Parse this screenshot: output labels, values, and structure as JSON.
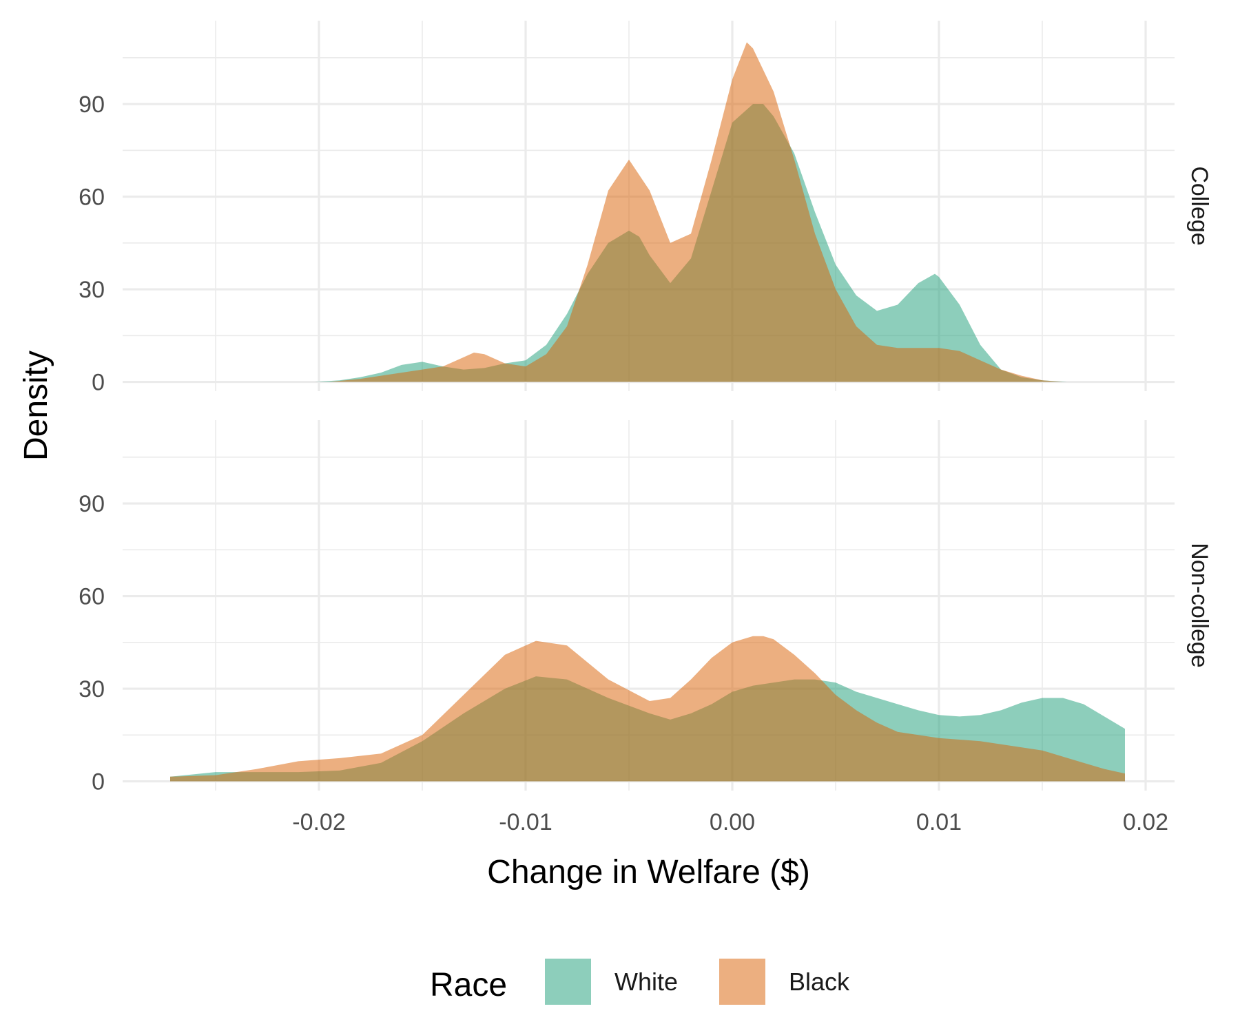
{
  "chart_data": {
    "type": "area",
    "subtype": "density, faceted",
    "xlabel": "Change in Welfare ($)",
    "ylabel": "Density",
    "xlim": [
      -0.0295,
      0.0214
    ],
    "ylim": [
      -3,
      117
    ],
    "x_ticks": [
      -0.02,
      -0.01,
      0.0,
      0.01,
      0.02
    ],
    "x_tick_labels": [
      "-0.02",
      "-0.01",
      "0.00",
      "0.01",
      "0.02"
    ],
    "y_ticks": [
      0,
      30,
      60,
      90
    ],
    "y_tick_labels": [
      "0",
      "30",
      "60",
      "90"
    ],
    "grid": true,
    "legend": {
      "title": "Race",
      "position": "bottom",
      "entries": [
        {
          "label": "White",
          "color": "#1b9e77"
        },
        {
          "label": "Black",
          "color": "#d95f02"
        }
      ]
    },
    "fill_opacity": 0.5,
    "facets": [
      {
        "label": "College",
        "series": [
          {
            "name": "White",
            "color": "#1b9e77",
            "x": [
              -0.0202,
              -0.019,
              -0.018,
              -0.017,
              -0.016,
              -0.015,
              -0.014,
              -0.013,
              -0.012,
              -0.011,
              -0.01,
              -0.009,
              -0.008,
              -0.007,
              -0.006,
              -0.005,
              -0.0045,
              -0.004,
              -0.003,
              -0.002,
              -0.001,
              0.0,
              0.001,
              0.0015,
              0.002,
              0.003,
              0.004,
              0.005,
              0.006,
              0.007,
              0.008,
              0.009,
              0.0098,
              0.01,
              0.011,
              0.012,
              0.013,
              0.014,
              0.015,
              0.016,
              0.0162
            ],
            "y": [
              0,
              0.5,
              1.5,
              3,
              5.5,
              6.5,
              5,
              4,
              4.5,
              6,
              7,
              12,
              22,
              35,
              45,
              49,
              47,
              41,
              32,
              40,
              62,
              84,
              90,
              90,
              86,
              74,
              55,
              38,
              28,
              23,
              25,
              32,
              35,
              34,
              25,
              12,
              4,
              1.5,
              0.5,
              0.1,
              0
            ]
          },
          {
            "name": "Black",
            "color": "#d95f02",
            "x": [
              -0.0195,
              -0.018,
              -0.017,
              -0.016,
              -0.015,
              -0.014,
              -0.013,
              -0.0125,
              -0.012,
              -0.011,
              -0.01,
              -0.009,
              -0.008,
              -0.007,
              -0.006,
              -0.005,
              -0.004,
              -0.003,
              -0.002,
              -0.001,
              0.0,
              0.0007,
              0.001,
              0.002,
              0.003,
              0.004,
              0.005,
              0.006,
              0.007,
              0.008,
              0.009,
              0.01,
              0.011,
              0.012,
              0.013,
              0.014,
              0.015,
              0.016
            ],
            "y": [
              0,
              1,
              2,
              3,
              4,
              5,
              8,
              9.5,
              9,
              6,
              5,
              9,
              18,
              38,
              62,
              72,
              62,
              45,
              48,
              72,
              98,
              110,
              108,
              94,
              72,
              48,
              30,
              18,
              12,
              11,
              11,
              11,
              10,
              7,
              4,
              2,
              0.5,
              0
            ]
          }
        ]
      },
      {
        "label": "Non-college",
        "series": [
          {
            "name": "White",
            "color": "#1b9e77",
            "x": [
              -0.0272,
              -0.025,
              -0.023,
              -0.021,
              -0.019,
              -0.017,
              -0.015,
              -0.013,
              -0.011,
              -0.0095,
              -0.008,
              -0.006,
              -0.004,
              -0.003,
              -0.002,
              -0.001,
              0.0,
              0.001,
              0.002,
              0.003,
              0.004,
              0.005,
              0.006,
              0.007,
              0.008,
              0.009,
              0.01,
              0.011,
              0.012,
              0.013,
              0.014,
              0.015,
              0.0155,
              0.016,
              0.017,
              0.018,
              0.019
            ],
            "y": [
              1.5,
              3,
              3,
              3,
              3.5,
              6,
              13,
              22,
              30,
              34,
              33,
              27,
              22,
              20,
              22,
              25,
              29,
              31,
              32,
              33,
              33,
              32,
              29,
              27,
              25,
              23,
              21.5,
              21,
              21.5,
              23,
              25.5,
              27,
              27,
              27,
              25,
              21,
              17
            ]
          },
          {
            "name": "Black",
            "color": "#d95f02",
            "x": [
              -0.0272,
              -0.025,
              -0.023,
              -0.021,
              -0.019,
              -0.017,
              -0.015,
              -0.013,
              -0.011,
              -0.0095,
              -0.008,
              -0.006,
              -0.004,
              -0.003,
              -0.002,
              -0.001,
              0.0,
              0.001,
              0.0015,
              0.002,
              0.003,
              0.004,
              0.005,
              0.006,
              0.007,
              0.008,
              0.009,
              0.01,
              0.011,
              0.012,
              0.013,
              0.014,
              0.015,
              0.016,
              0.017,
              0.018,
              0.019
            ],
            "y": [
              1.5,
              2,
              4,
              6.5,
              7.5,
              9,
              15,
              28,
              41,
              45.5,
              44,
              33,
              26,
              27,
              33,
              40,
              45,
              47,
              47,
              46,
              41,
              35,
              28,
              23,
              19,
              16,
              15,
              14,
              13.5,
              13,
              12,
              11,
              10,
              8,
              6,
              4,
              2.5
            ]
          }
        ]
      }
    ]
  }
}
